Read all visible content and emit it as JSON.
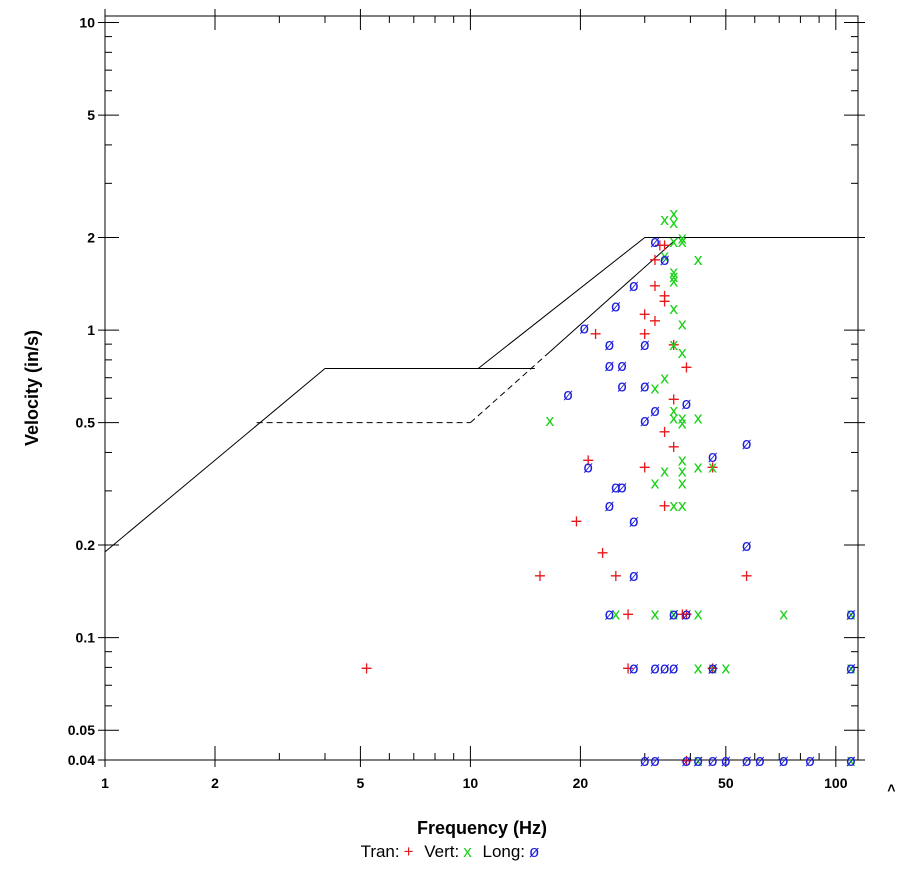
{
  "chart_data": {
    "type": "scatter",
    "xlabel": "Frequency (Hz)",
    "ylabel": "Velocity (in/s)",
    "x_scale": "log",
    "y_scale": "log",
    "xlim": [
      1,
      115
    ],
    "ylim": [
      0.04,
      10.5
    ],
    "x_ticks": [
      1,
      2,
      5,
      10,
      20,
      50,
      100
    ],
    "x_tick_labels": [
      "1",
      "2",
      "5",
      "10",
      "20",
      "50",
      "100"
    ],
    "y_ticks": [
      0.04,
      0.05,
      0.1,
      0.2,
      0.5,
      1,
      2,
      5,
      10
    ],
    "y_tick_labels": [
      "0.04",
      "0.05",
      "0.1",
      "0.2",
      "0.5",
      "1",
      "2",
      "5",
      "10"
    ],
    "overflow_marker": ">",
    "grid": false,
    "limit_curves": [
      {
        "style": "solid",
        "points": [
          [
            1,
            0.19
          ],
          [
            4,
            0.75
          ],
          [
            15,
            0.75
          ]
        ]
      },
      {
        "style": "solid",
        "points": [
          [
            10.5,
            0.75
          ],
          [
            30,
            2.0
          ],
          [
            115,
            2.0
          ]
        ]
      },
      {
        "style": "solid-dashed",
        "points": [
          [
            2.6,
            0.5
          ],
          [
            10,
            0.5
          ],
          [
            37,
            2.0
          ]
        ]
      }
    ],
    "legend": {
      "position": "bottom-center",
      "prefix_labels": [
        "Tran:",
        "Vert:",
        "Long:"
      ]
    },
    "series": [
      {
        "name": "Tran",
        "symbol": "+",
        "color": "#e8191b",
        "points": [
          [
            5.2,
            0.08
          ],
          [
            15.5,
            0.16
          ],
          [
            19.5,
            0.24
          ],
          [
            21,
            0.38
          ],
          [
            22,
            0.98
          ],
          [
            23,
            0.19
          ],
          [
            25,
            0.16
          ],
          [
            27,
            0.12
          ],
          [
            27,
            0.08
          ],
          [
            30,
            0.98
          ],
          [
            30,
            1.13
          ],
          [
            30,
            0.36
          ],
          [
            32,
            1.7
          ],
          [
            32,
            1.4
          ],
          [
            32,
            1.08
          ],
          [
            34,
            1.3
          ],
          [
            34,
            1.25
          ],
          [
            34,
            0.47
          ],
          [
            34,
            0.27
          ],
          [
            34,
            1.9
          ],
          [
            36,
            0.6
          ],
          [
            36,
            0.42
          ],
          [
            36,
            0.9
          ],
          [
            38,
            0.12
          ],
          [
            39,
            0.76
          ],
          [
            39,
            0.12
          ],
          [
            46,
            0.08
          ],
          [
            46,
            0.36
          ],
          [
            57,
            0.16
          ],
          [
            39,
            0.04
          ],
          [
            33,
            1.9
          ]
        ]
      },
      {
        "name": "Vert",
        "symbol": "x",
        "color": "#19d219",
        "points": [
          [
            16.5,
            0.51
          ],
          [
            25,
            0.12
          ],
          [
            32,
            0.12
          ],
          [
            32,
            0.32
          ],
          [
            32,
            0.65
          ],
          [
            34,
            0.7
          ],
          [
            34,
            0.35
          ],
          [
            34,
            2.3
          ],
          [
            34,
            1.75
          ],
          [
            36,
            2.4
          ],
          [
            36,
            2.25
          ],
          [
            36,
            1.95
          ],
          [
            36,
            1.55
          ],
          [
            36,
            1.5
          ],
          [
            36,
            1.45
          ],
          [
            36,
            1.18
          ],
          [
            36,
            0.9
          ],
          [
            36,
            0.55
          ],
          [
            36,
            0.52
          ],
          [
            36,
            0.27
          ],
          [
            36,
            0.12
          ],
          [
            38,
            2.0
          ],
          [
            38,
            1.95
          ],
          [
            38,
            1.05
          ],
          [
            38,
            0.85
          ],
          [
            38,
            0.52
          ],
          [
            38,
            0.5
          ],
          [
            38,
            0.38
          ],
          [
            38,
            0.35
          ],
          [
            38,
            0.32
          ],
          [
            38,
            0.27
          ],
          [
            42,
            1.7
          ],
          [
            42,
            0.52
          ],
          [
            42,
            0.36
          ],
          [
            42,
            0.12
          ],
          [
            42,
            0.08
          ],
          [
            46,
            0.08
          ],
          [
            46,
            0.36
          ],
          [
            50,
            0.08
          ],
          [
            72,
            0.12
          ],
          [
            42,
            0.04
          ],
          [
            110,
            0.12
          ],
          [
            110,
            0.08
          ],
          [
            110,
            0.04
          ]
        ]
      },
      {
        "name": "Long",
        "symbol": "ø",
        "color": "#1c1cdc",
        "points": [
          [
            18.5,
            0.62
          ],
          [
            20.5,
            1.02
          ],
          [
            21,
            0.36
          ],
          [
            24,
            0.9
          ],
          [
            24,
            0.77
          ],
          [
            24,
            0.27
          ],
          [
            24,
            0.12
          ],
          [
            25,
            1.2
          ],
          [
            25,
            0.31
          ],
          [
            26,
            0.77
          ],
          [
            26,
            0.66
          ],
          [
            26,
            0.31
          ],
          [
            28,
            1.4
          ],
          [
            28,
            0.24
          ],
          [
            28,
            0.16
          ],
          [
            28,
            0.08
          ],
          [
            30,
            0.9
          ],
          [
            30,
            0.66
          ],
          [
            30,
            0.51
          ],
          [
            32,
            1.95
          ],
          [
            32,
            0.55
          ],
          [
            32,
            0.08
          ],
          [
            34,
            1.7
          ],
          [
            34,
            0.08
          ],
          [
            36,
            0.12
          ],
          [
            36,
            0.08
          ],
          [
            39,
            0.58
          ],
          [
            39,
            0.12
          ],
          [
            46,
            0.39
          ],
          [
            46,
            0.08
          ],
          [
            57,
            0.43
          ],
          [
            57,
            0.2
          ],
          [
            30,
            0.04
          ],
          [
            32,
            0.04
          ],
          [
            39,
            0.04
          ],
          [
            42,
            0.04
          ],
          [
            46,
            0.04
          ],
          [
            50,
            0.04
          ],
          [
            57,
            0.04
          ],
          [
            62,
            0.04
          ],
          [
            72,
            0.04
          ],
          [
            85,
            0.04
          ],
          [
            110,
            0.12
          ],
          [
            110,
            0.08
          ],
          [
            110,
            0.04
          ]
        ]
      }
    ]
  }
}
